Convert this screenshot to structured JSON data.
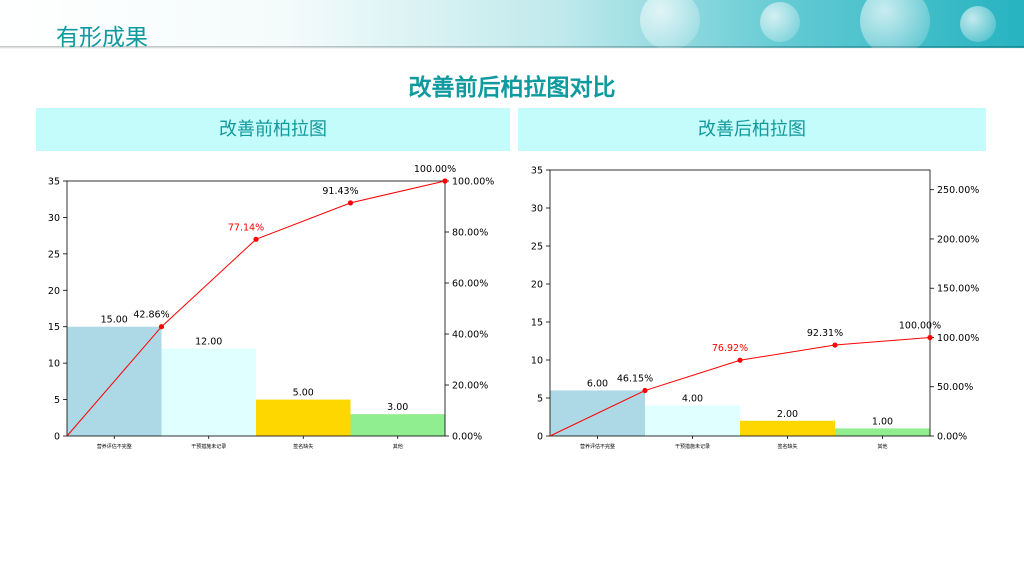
{
  "page": {
    "section_title": "有形成果",
    "main_title": "改善前后柏拉图对比"
  },
  "panels": [
    {
      "title": "改善前柏拉图"
    },
    {
      "title": "改善后柏拉图"
    }
  ],
  "chart_data": [
    {
      "type": "bar",
      "title": "改善前柏拉图",
      "categories": [
        "营养评估不完整",
        "干预措施未记录",
        "签名缺失",
        "其他"
      ],
      "values": [
        15,
        12,
        5,
        3
      ],
      "value_labels": [
        "15.00",
        "12.00",
        "5.00",
        "3.00"
      ],
      "bar_colors": [
        "#add8e6",
        "#e0ffff",
        "#ffd700",
        "#90ee90"
      ],
      "cumulative_percent": [
        0,
        42.86,
        77.14,
        91.43,
        100.0
      ],
      "cumulative_labels": [
        "42.86%",
        "77.14%",
        "91.43%",
        "100.00%"
      ],
      "highlight_label_index": 1,
      "line_color": "#ff0000",
      "ylim": [
        0,
        35
      ],
      "yticks": [
        0,
        5,
        10,
        15,
        20,
        25,
        30,
        35
      ],
      "y2lim": [
        0,
        100
      ],
      "y2ticks": [
        0,
        20,
        40,
        60,
        80,
        100
      ],
      "y2tick_labels": [
        "0.00%",
        "20.00%",
        "40.00%",
        "60.00%",
        "80.00%",
        "100.00%"
      ],
      "grid": false
    },
    {
      "type": "bar",
      "title": "改善后柏拉图",
      "categories": [
        "营养评估不完整",
        "干预措施未记录",
        "签名缺失",
        "其他"
      ],
      "values": [
        6,
        4,
        2,
        1
      ],
      "value_labels": [
        "6.00",
        "4.00",
        "2.00",
        "1.00"
      ],
      "bar_colors": [
        "#add8e6",
        "#e0ffff",
        "#ffd700",
        "#90ee90"
      ],
      "cumulative_percent": [
        0,
        46.15,
        76.92,
        92.31,
        100.0
      ],
      "cumulative_labels": [
        "46.15%",
        "76.92%",
        "92.31%",
        "100.00%"
      ],
      "highlight_label_index": 1,
      "line_color": "#ff0000",
      "ylim": [
        0,
        35
      ],
      "yticks": [
        0,
        5,
        10,
        15,
        20,
        25,
        30,
        35
      ],
      "y2lim": [
        0,
        270
      ],
      "y2ticks": [
        0,
        50,
        100,
        150,
        200,
        250
      ],
      "y2tick_labels": [
        "0.00%",
        "50.00%",
        "100.00%",
        "150.00%",
        "200.00%",
        "250.00%"
      ],
      "grid": false
    }
  ]
}
